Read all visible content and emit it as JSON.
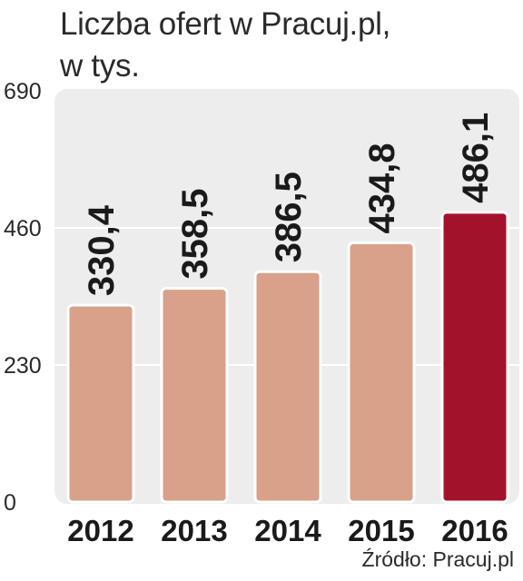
{
  "chart_data": {
    "type": "bar",
    "title_line1": "Liczba ofert w Pracuj.pl,",
    "title_line2": "w tys.",
    "categories": [
      "2012",
      "2013",
      "2014",
      "2015",
      "2016"
    ],
    "values": [
      330.4,
      358.5,
      386.5,
      434.8,
      486.1
    ],
    "value_labels": [
      "330,4",
      "358,5",
      "386,5",
      "434,8",
      "486,1"
    ],
    "y_ticks": [
      0,
      230,
      460,
      690
    ],
    "ylim": [
      0,
      690
    ],
    "grid": true,
    "highlight_index": 4,
    "colors": {
      "bar": "#d9a08a",
      "bar_highlight": "#a3122b",
      "bar_stroke": "#ffffff",
      "panel": "#ededed",
      "grid": "#ffffff"
    },
    "source": "Źródło: Pracuj.pl"
  }
}
